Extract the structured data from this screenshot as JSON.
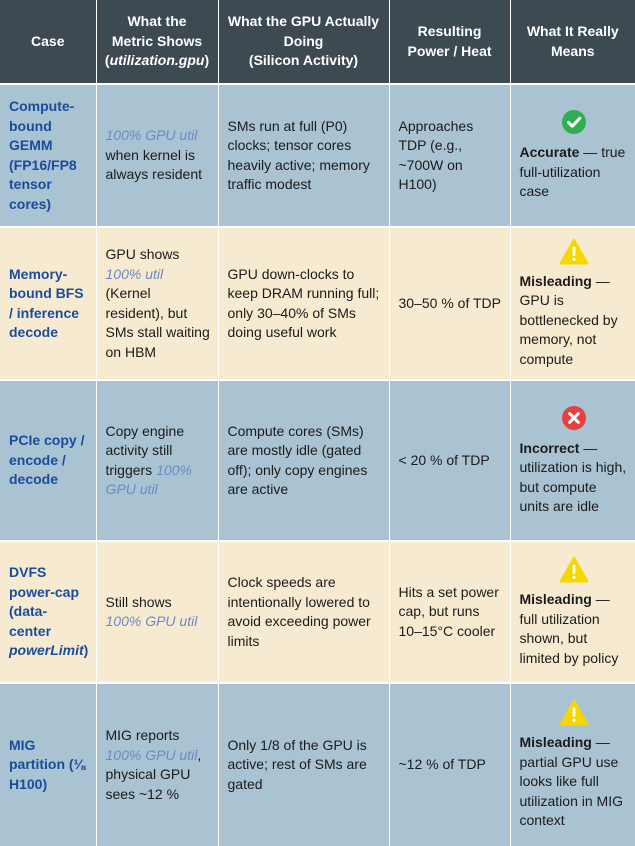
{
  "header": {
    "case": "Case",
    "metric_l1": "What the",
    "metric_l2": "Metric Shows",
    "metric_l3": "utilization.gpu",
    "gpu_l1": "What the GPU Actually",
    "gpu_l2": "Doing",
    "gpu_l3": "(Silicon Activity)",
    "power_l1": "Resulting",
    "power_l2": "Power / Heat",
    "means_l1": "What It Really",
    "means_l2": "Means"
  },
  "rows": [
    {
      "case_a": "Compute-bound GEMM (FP16/FP8 tensor cores)",
      "case_b": "",
      "case_c": "",
      "metric_pre": "",
      "metric_hl": "100% GPU util",
      "metric_post": " when kernel is always resident",
      "gpu": "SMs run at full (P0) clocks; tensor cores heavily active; memory traffic modest",
      "power": "Approaches TDP (e.g., ~700W on H100)",
      "icon": "check-circle-icon",
      "icon_color": "#2fae4f",
      "verdict": "Accurate",
      "explain": " — true full-utilization case"
    },
    {
      "case_a": "Memory-bound BFS / inference decode",
      "case_b": "",
      "case_c": "",
      "metric_pre": "GPU shows ",
      "metric_hl": "100% util",
      "metric_post": " (Kernel resident), but SMs stall waiting on HBM",
      "gpu": "GPU down-clocks to keep DRAM running full; only 30–40% of SMs doing useful work",
      "power": "30–50 % of TDP",
      "icon": "warning-icon",
      "icon_color": "#f4d800",
      "verdict": "Misleading",
      "explain": " — GPU is bottlenecked by memory, not compute"
    },
    {
      "case_a": "PCIe copy / encode / decode",
      "case_b": "",
      "case_c": "",
      "metric_pre": "Copy engine activity still triggers ",
      "metric_hl": "100% GPU util",
      "metric_post": "",
      "gpu": "Compute cores (SMs) are mostly idle (gated off); only copy engines are active",
      "power": "< 20 % of TDP",
      "icon": "x-circle-icon",
      "icon_color": "#e8403a",
      "verdict": "Incorrect",
      "explain": " — utilization is high, but compute units are idle"
    },
    {
      "case_a": "DVFS power-cap (data-center ",
      "case_b": "powerLimit",
      "case_c": ")",
      "metric_pre": "Still shows ",
      "metric_hl": "100% GPU util",
      "metric_post": "",
      "gpu": "Clock speeds are intentionally lowered to avoid exceeding power limits",
      "power": "Hits a set power cap, but runs 10–15°C cooler",
      "icon": "warning-icon",
      "icon_color": "#f4d800",
      "verdict": "Misleading",
      "explain": " — full utilization shown, but limited by policy"
    },
    {
      "case_a": "MIG partition (⅛ H100)",
      "case_b": "",
      "case_c": "",
      "metric_pre": "MIG reports ",
      "metric_hl": "100% GPU util",
      "metric_post": ", physical GPU sees ~12 %",
      "gpu": "Only 1/8 of the GPU is active; rest of SMs are gated",
      "power": "~12 % of TDP",
      "icon": "warning-icon",
      "icon_color": "#f4d800",
      "verdict": "Misleading",
      "explain": " — partial GPU use looks like full utilization in MIG context"
    }
  ]
}
